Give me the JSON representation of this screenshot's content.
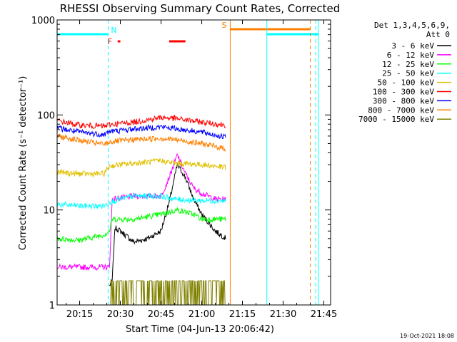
{
  "chart_data": {
    "type": "line",
    "title": "RHESSI Observing Summary Count Rates, Corrected",
    "ylabel": "Corrected Count Rate (s⁻¹ detector⁻¹)",
    "xlabel": "Start Time (04-Jun-13 20:06:42)",
    "x_ticks": [
      "20:15",
      "20:30",
      "20:45",
      "21:00",
      "21:15",
      "21:30",
      "21:45"
    ],
    "y_ticks": [
      "1",
      "10",
      "100",
      "1000"
    ],
    "ylim": [
      1,
      1000
    ],
    "y_scale": "log",
    "x_range": [
      "20:06:42",
      "21:47:30"
    ],
    "legend_header": [
      "Det 1,3,4,5,6,9,",
      "Att 0"
    ],
    "series": [
      {
        "name": "3 - 6 keV",
        "color": "#000000",
        "points": [
          [
            "20:26",
            1.6
          ],
          [
            "20:27",
            1.8
          ],
          [
            "20:28",
            6.5
          ],
          [
            "20:30",
            6.0
          ],
          [
            "20:35",
            4.6
          ],
          [
            "20:40",
            5.0
          ],
          [
            "20:45",
            6.0
          ],
          [
            "20:48",
            12
          ],
          [
            "20:51",
            30
          ],
          [
            "20:54",
            22
          ],
          [
            "20:57",
            13
          ],
          [
            "21:00",
            9
          ],
          [
            "21:05",
            6
          ],
          [
            "21:09",
            5.0
          ]
        ]
      },
      {
        "name": "6 - 12 keV",
        "color": "#ff00ff",
        "points": [
          [
            "20:06:42",
            2.5
          ],
          [
            "20:24",
            2.5
          ],
          [
            "20:26",
            2.5
          ],
          [
            "20:27",
            13
          ],
          [
            "20:35",
            14
          ],
          [
            "20:45",
            14
          ],
          [
            "20:48",
            22
          ],
          [
            "20:51",
            38
          ],
          [
            "20:54",
            24
          ],
          [
            "20:57",
            17
          ],
          [
            "21:00",
            15
          ],
          [
            "21:05",
            13
          ],
          [
            "21:09",
            13
          ]
        ]
      },
      {
        "name": "12 - 25 keV",
        "color": "#00ff00",
        "points": [
          [
            "20:06:42",
            5.0
          ],
          [
            "20:15",
            4.8
          ],
          [
            "20:24",
            5.5
          ],
          [
            "20:26",
            6.0
          ],
          [
            "20:27",
            8.0
          ],
          [
            "20:35",
            8.0
          ],
          [
            "20:45",
            9.0
          ],
          [
            "20:51",
            10
          ],
          [
            "20:57",
            9
          ],
          [
            "21:00",
            8
          ],
          [
            "21:09",
            8
          ]
        ]
      },
      {
        "name": "25 - 50 keV",
        "color": "#00ffff",
        "points": [
          [
            "20:06:42",
            11.5
          ],
          [
            "20:15",
            11
          ],
          [
            "20:24",
            11
          ],
          [
            "20:26",
            12
          ],
          [
            "20:30",
            13
          ],
          [
            "20:35",
            14
          ],
          [
            "20:45",
            14
          ],
          [
            "20:50",
            13
          ],
          [
            "21:00",
            12.5
          ],
          [
            "21:09",
            12.5
          ]
        ]
      },
      {
        "name": "50 - 100 keV",
        "color": "#e0c000",
        "points": [
          [
            "20:06:42",
            25
          ],
          [
            "20:15",
            24
          ],
          [
            "20:24",
            24
          ],
          [
            "20:26",
            29
          ],
          [
            "20:35",
            31
          ],
          [
            "20:45",
            33
          ],
          [
            "20:50",
            31
          ],
          [
            "21:00",
            30
          ],
          [
            "21:09",
            28
          ]
        ]
      },
      {
        "name": "100 - 300 keV",
        "color": "#ff0000",
        "points": [
          [
            "20:06:42",
            87
          ],
          [
            "20:15",
            78
          ],
          [
            "20:24",
            76
          ],
          [
            "20:26",
            79
          ],
          [
            "20:35",
            84
          ],
          [
            "20:45",
            94
          ],
          [
            "20:50",
            92
          ],
          [
            "21:00",
            84
          ],
          [
            "21:09",
            78
          ]
        ]
      },
      {
        "name": "300 - 800 keV",
        "color": "#0000ff",
        "points": [
          [
            "20:06:42",
            73
          ],
          [
            "20:15",
            66
          ],
          [
            "20:24",
            62
          ],
          [
            "20:26",
            67
          ],
          [
            "20:35",
            71
          ],
          [
            "20:45",
            75
          ],
          [
            "20:50",
            72
          ],
          [
            "21:00",
            66
          ],
          [
            "21:09",
            58
          ]
        ]
      },
      {
        "name": "800 - 7000 keV",
        "color": "#ff8000",
        "points": [
          [
            "20:06:42",
            60
          ],
          [
            "20:15",
            54
          ],
          [
            "20:24",
            49
          ],
          [
            "20:26",
            52
          ],
          [
            "20:35",
            55
          ],
          [
            "20:45",
            57
          ],
          [
            "20:50",
            55
          ],
          [
            "21:00",
            50
          ],
          [
            "21:09",
            44
          ]
        ]
      },
      {
        "name": "7000 - 15000 keV",
        "color": "#808000",
        "points": [
          [
            "20:26",
            1.0
          ],
          [
            "20:30",
            1.8
          ],
          [
            "20:40",
            1.8
          ],
          [
            "20:50",
            1.8
          ],
          [
            "21:00",
            1.8
          ],
          [
            "21:09",
            1.8
          ]
        ]
      }
    ],
    "vertical_lines": [
      {
        "time": "20:25:30",
        "color": "#00ffff",
        "style": "dashed"
      },
      {
        "time": "21:10:30",
        "color": "#ff8000",
        "style": "solid"
      },
      {
        "time": "21:24",
        "color": "#00ffff",
        "style": "solid"
      },
      {
        "time": "21:40",
        "color": "#ff8000",
        "style": "dashed"
      },
      {
        "time": "21:42",
        "color": "#00ffff",
        "style": "dashed"
      },
      {
        "time": "21:43",
        "color": "#00ffff",
        "style": "solid"
      }
    ],
    "bars": [
      {
        "label": "N",
        "color": "#00ffff",
        "segments": [
          [
            "20:06:42",
            "20:25:30"
          ],
          [
            "21:24",
            "21:43"
          ]
        ]
      },
      {
        "label": "F",
        "color": "#ff0000",
        "segments": [
          [
            "20:29",
            "20:30"
          ],
          [
            "20:48",
            "20:54"
          ]
        ]
      },
      {
        "label": "S",
        "color": "#ff8000",
        "segments": [
          [
            "21:10:30",
            "21:40"
          ]
        ]
      }
    ]
  },
  "footer_date": "19-Oct-2021 18:08"
}
